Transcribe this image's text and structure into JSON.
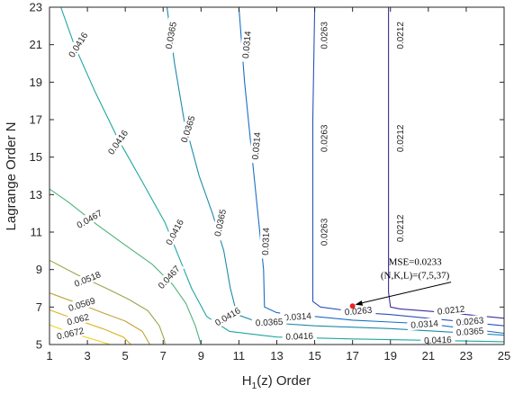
{
  "chart_data": {
    "type": "contour",
    "xlabel_main": "H",
    "xlabel_sub": "1",
    "xlabel_rest": "(z) Order",
    "ylabel": "Lagrange Order N",
    "xlim": [
      1,
      25
    ],
    "ylim": [
      5,
      23
    ],
    "xticks": [
      1,
      3,
      5,
      7,
      9,
      11,
      13,
      15,
      17,
      19,
      21,
      23,
      25
    ],
    "yticks": [
      5,
      7,
      9,
      11,
      13,
      15,
      17,
      19,
      21,
      23
    ],
    "grid": false,
    "levels": [
      {
        "level": "0.0212",
        "color": "#3b2f9a",
        "points": [
          [
            18.9,
            23
          ],
          [
            18.9,
            13
          ],
          [
            18.9,
            7.8
          ],
          [
            19.0,
            7.0
          ],
          [
            19.5,
            6.9
          ],
          [
            22,
            6.7
          ],
          [
            25,
            6.4
          ]
        ],
        "labels": [
          [
            19.5,
            21.5,
            -90
          ],
          [
            19.5,
            16,
            -90
          ],
          [
            19.5,
            11.2,
            -90
          ],
          [
            22.2,
            6.85,
            -6
          ]
        ]
      },
      {
        "level": "0.0263",
        "color": "#2a52b8",
        "points": [
          [
            15.0,
            23
          ],
          [
            14.9,
            17
          ],
          [
            14.9,
            12
          ],
          [
            14.9,
            7.3
          ],
          [
            15.3,
            7.0
          ],
          [
            17.5,
            6.7
          ],
          [
            19,
            6.6
          ],
          [
            21,
            6.4
          ],
          [
            25,
            6.0
          ]
        ],
        "labels": [
          [
            15.5,
            21.5,
            -90
          ],
          [
            15.5,
            16,
            -90
          ],
          [
            15.5,
            11,
            -90
          ],
          [
            17.3,
            6.8,
            -5
          ],
          [
            23.2,
            6.25,
            -5
          ]
        ]
      },
      {
        "level": "0.0314",
        "color": "#1a6fc4",
        "points": [
          [
            11.0,
            23
          ],
          [
            11.3,
            19
          ],
          [
            11.7,
            15
          ],
          [
            12.1,
            11
          ],
          [
            12.3,
            9
          ],
          [
            12.35,
            7
          ],
          [
            13,
            6.7
          ],
          [
            15,
            6.5
          ],
          [
            17,
            6.3
          ],
          [
            19,
            6.2
          ],
          [
            21,
            6.1
          ],
          [
            25,
            5.6
          ]
        ],
        "labels": [
          [
            11.4,
            21,
            -85
          ],
          [
            11.9,
            15.6,
            -85
          ],
          [
            12.4,
            10.5,
            -88
          ],
          [
            14.1,
            6.5,
            -4
          ],
          [
            20.8,
            6.1,
            -4
          ]
        ]
      },
      {
        "level": "0.0365",
        "color": "#1e8aaa",
        "points": [
          [
            7.2,
            23
          ],
          [
            7.6,
            20
          ],
          [
            8.1,
            17
          ],
          [
            8.9,
            14
          ],
          [
            9.6,
            12
          ],
          [
            10.2,
            10
          ],
          [
            10.55,
            8
          ],
          [
            10.9,
            6.6
          ],
          [
            12,
            6.2
          ],
          [
            15,
            6.0
          ],
          [
            19,
            5.85
          ],
          [
            25,
            5.5
          ]
        ],
        "labels": [
          [
            7.4,
            21.5,
            -80
          ],
          [
            8.3,
            16.5,
            -72
          ],
          [
            10.0,
            11.5,
            -78
          ],
          [
            12.6,
            6.2,
            -3
          ],
          [
            23.2,
            5.7,
            -4
          ]
        ]
      },
      {
        "level": "0.0416",
        "color": "#1fa6a0",
        "points": [
          [
            1.6,
            23
          ],
          [
            2.3,
            21
          ],
          [
            3.4,
            18.5
          ],
          [
            4.6,
            16
          ],
          [
            6.0,
            13.5
          ],
          [
            7.1,
            11.5
          ],
          [
            7.9,
            9.5
          ],
          [
            8.5,
            8
          ],
          [
            9.3,
            6.5
          ],
          [
            10.5,
            5.7
          ],
          [
            13,
            5.4
          ],
          [
            17,
            5.3
          ],
          [
            25,
            5.15
          ]
        ],
        "labels": [
          [
            2.5,
            21,
            -58
          ],
          [
            4.6,
            15.8,
            -55
          ],
          [
            7.6,
            11,
            -62
          ],
          [
            10.4,
            6.5,
            -30
          ],
          [
            14.2,
            5.45,
            -2
          ],
          [
            21.5,
            5.25,
            -2
          ]
        ]
      },
      {
        "level": "0.0467",
        "color": "#4db37a",
        "points": [
          [
            1,
            13.3
          ],
          [
            2,
            12.6
          ],
          [
            3.5,
            11.4
          ],
          [
            5,
            10.3
          ],
          [
            6.4,
            9.3
          ],
          [
            7.5,
            8.2
          ],
          [
            8.2,
            7.2
          ],
          [
            8.7,
            6.0
          ],
          [
            9.0,
            5
          ]
        ],
        "labels": [
          [
            3.1,
            11.7,
            -30
          ],
          [
            7.3,
            8.6,
            -48
          ]
        ]
      },
      {
        "level": "0.0518",
        "color": "#9aa64a",
        "points": [
          [
            1,
            9.5
          ],
          [
            2.5,
            8.7
          ],
          [
            4,
            8.0
          ],
          [
            5.2,
            7.4
          ],
          [
            6.2,
            6.8
          ],
          [
            6.8,
            6.0
          ],
          [
            7.05,
            5.3
          ],
          [
            7.1,
            5
          ]
        ],
        "labels": [
          [
            3.0,
            8.5,
            -22
          ]
        ]
      },
      {
        "level": "0.0569",
        "color": "#c3a237",
        "points": [
          [
            1,
            7.75
          ],
          [
            2.5,
            7.2
          ],
          [
            3.8,
            6.7
          ],
          [
            5,
            6.25
          ],
          [
            5.9,
            5.7
          ],
          [
            6.3,
            5
          ]
        ],
        "labels": [
          [
            2.7,
            7.15,
            -17
          ]
        ]
      },
      {
        "level": "0.062",
        "color": "#d9b225",
        "points": [
          [
            1,
            6.85
          ],
          [
            2.5,
            6.3
          ],
          [
            3.8,
            5.85
          ],
          [
            4.9,
            5.4
          ],
          [
            5.3,
            5
          ]
        ],
        "labels": [
          [
            2.5,
            6.35,
            -15
          ]
        ]
      },
      {
        "level": "0.0672",
        "color": "#ead41e",
        "points": [
          [
            1,
            6.05
          ],
          [
            2.2,
            5.6
          ],
          [
            3.4,
            5.25
          ],
          [
            4.2,
            5
          ]
        ],
        "labels": [
          [
            2.1,
            5.6,
            -13
          ]
        ]
      }
    ],
    "marker": {
      "x": 17.0,
      "y": 7.05,
      "color": "#e8242a"
    },
    "annotation": {
      "line1": "MSE=0.0233",
      "line2": "(N,K,L)=(7,5,37)",
      "text_at": [
        20.3,
        9.0
      ]
    }
  }
}
